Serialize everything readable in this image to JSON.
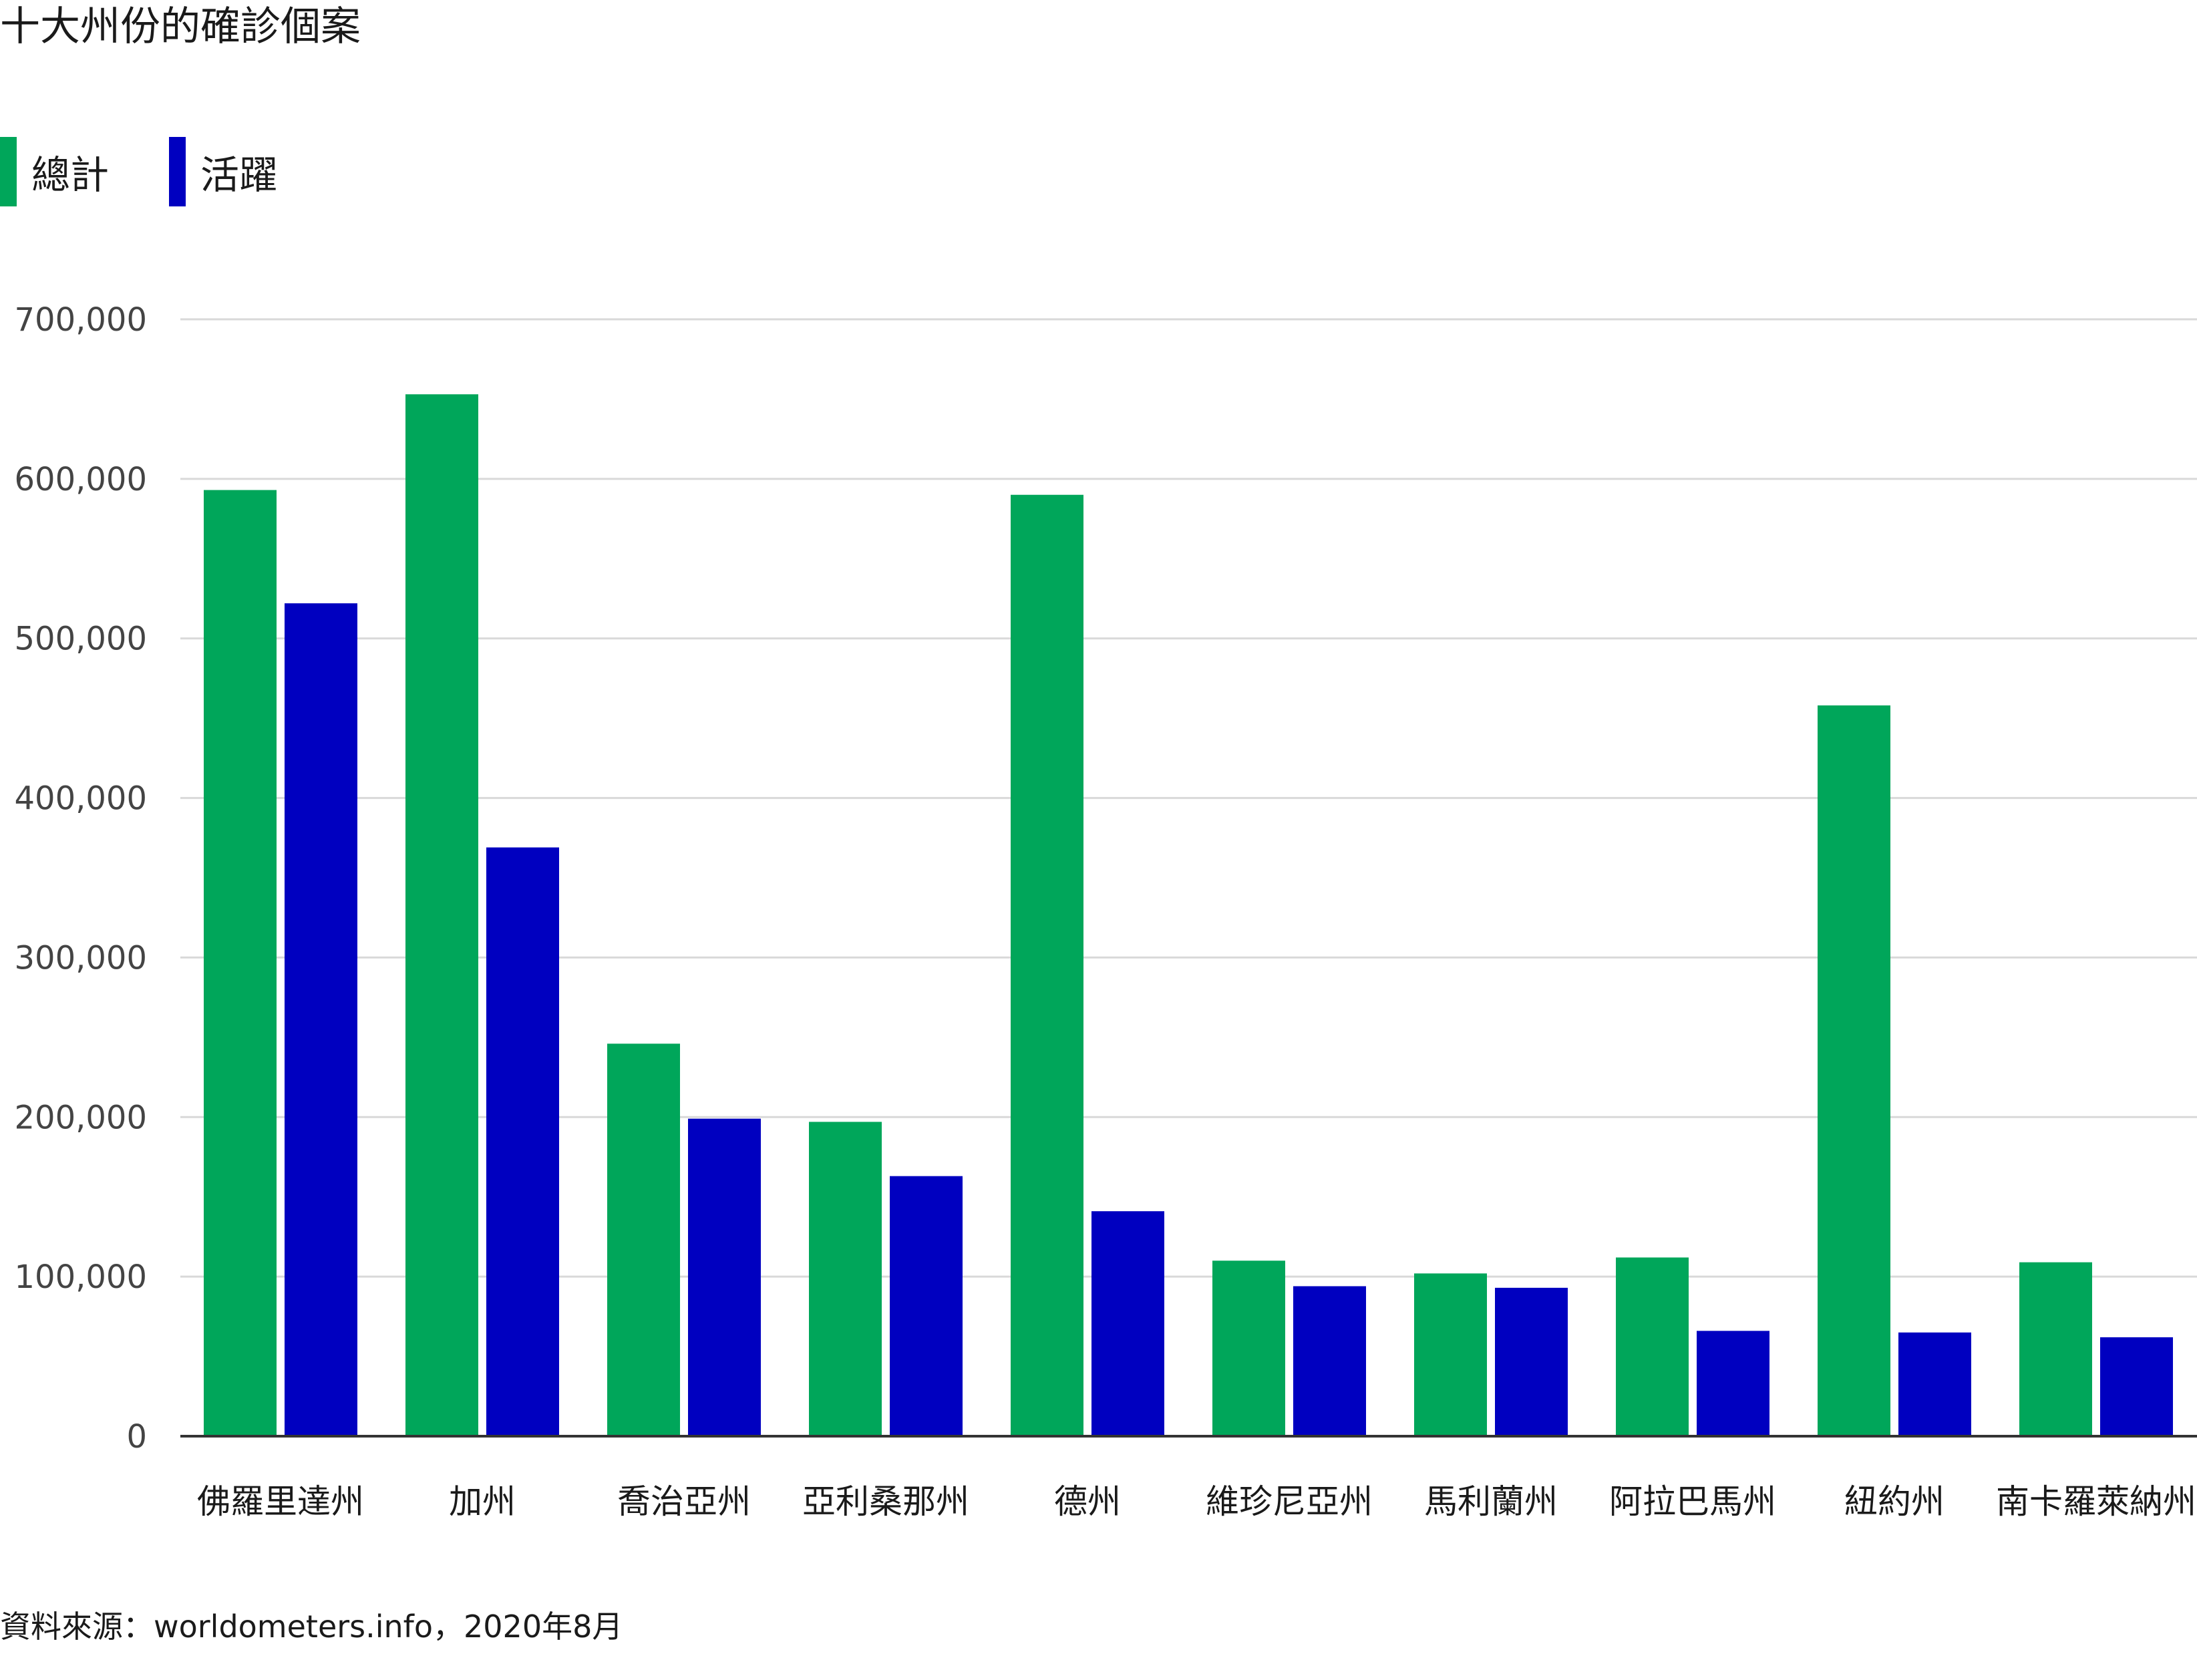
{
  "chart_data": {
    "type": "bar",
    "title": "十大州份的確診個案",
    "categories": [
      "佛羅里達州",
      "加州",
      "喬治亞州",
      "亞利桑那州",
      "德州",
      "維珍尼亞州",
      "馬利蘭州",
      "阿拉巴馬州",
      "紐約州",
      "南卡羅萊納州"
    ],
    "series": [
      {
        "name": "總計",
        "color": "#00a65a",
        "values": [
          593000,
          653000,
          246000,
          197000,
          590000,
          110000,
          102000,
          112000,
          458000,
          109000
        ]
      },
      {
        "name": "活躍",
        "color": "#0000c0",
        "values": [
          522000,
          369000,
          199000,
          163000,
          141000,
          94000,
          93000,
          66000,
          65000,
          62000
        ]
      }
    ],
    "ylim": [
      0,
      700000
    ],
    "yticks": [
      0,
      100000,
      200000,
      300000,
      400000,
      500000,
      600000,
      700000
    ],
    "ytick_labels": [
      "0",
      "100,000",
      "200,000",
      "300,000",
      "400,000",
      "500,000",
      "600,000",
      "700,000"
    ],
    "xlabel": "",
    "ylabel": "",
    "grid": true,
    "legend_position": "top-left",
    "source": "資料來源：worldometers.info，2020年8月"
  }
}
